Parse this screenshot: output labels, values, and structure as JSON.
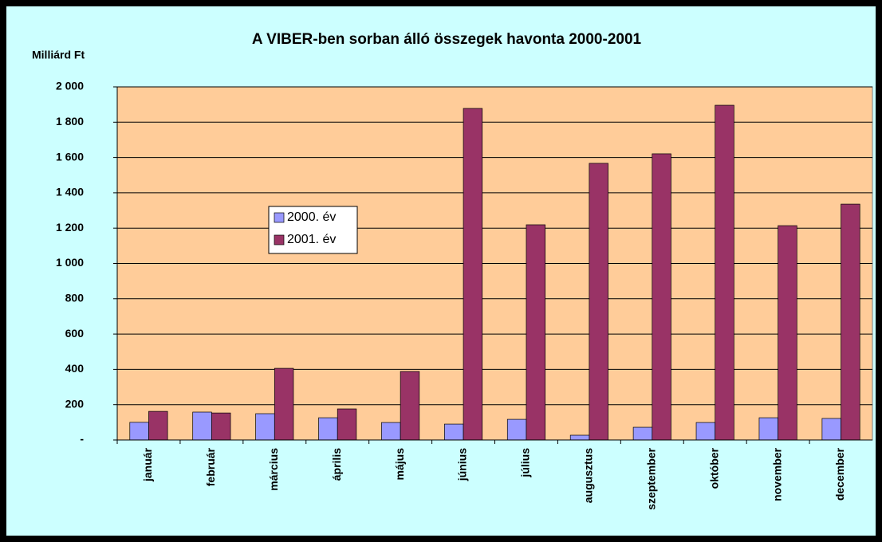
{
  "chart_data": {
    "type": "bar",
    "title": "A VIBER-ben sorban álló összegek havonta 2000-2001",
    "y_label": "Milliárd Ft",
    "categories": [
      "január",
      "február",
      "március",
      "április",
      "május",
      "június",
      "július",
      "augusztus",
      "szeptember",
      "október",
      "november",
      "december"
    ],
    "series": [
      {
        "name": "2000. év",
        "color": "#9999ff",
        "values": [
          100,
          158,
          149,
          126,
          99,
          90,
          117,
          27,
          72,
          99,
          126,
          122
        ]
      },
      {
        "name": "2001. év",
        "color": "#993366",
        "values": [
          162,
          153,
          406,
          176,
          388,
          1878,
          1219,
          1567,
          1621,
          1896,
          1214,
          1336
        ]
      }
    ],
    "ylim": [
      0,
      2000
    ],
    "yticks": [
      {
        "value": 0,
        "label": "-"
      },
      200,
      400,
      600,
      800,
      {
        "value": 1000,
        "label": "1 000"
      },
      {
        "value": 1200,
        "label": "1 200"
      },
      {
        "value": 1400,
        "label": "1 400"
      },
      {
        "value": 1600,
        "label": "1 600"
      },
      {
        "value": 1800,
        "label": "1 800"
      },
      {
        "value": 2000,
        "label": "2 000"
      }
    ],
    "grid": true
  }
}
